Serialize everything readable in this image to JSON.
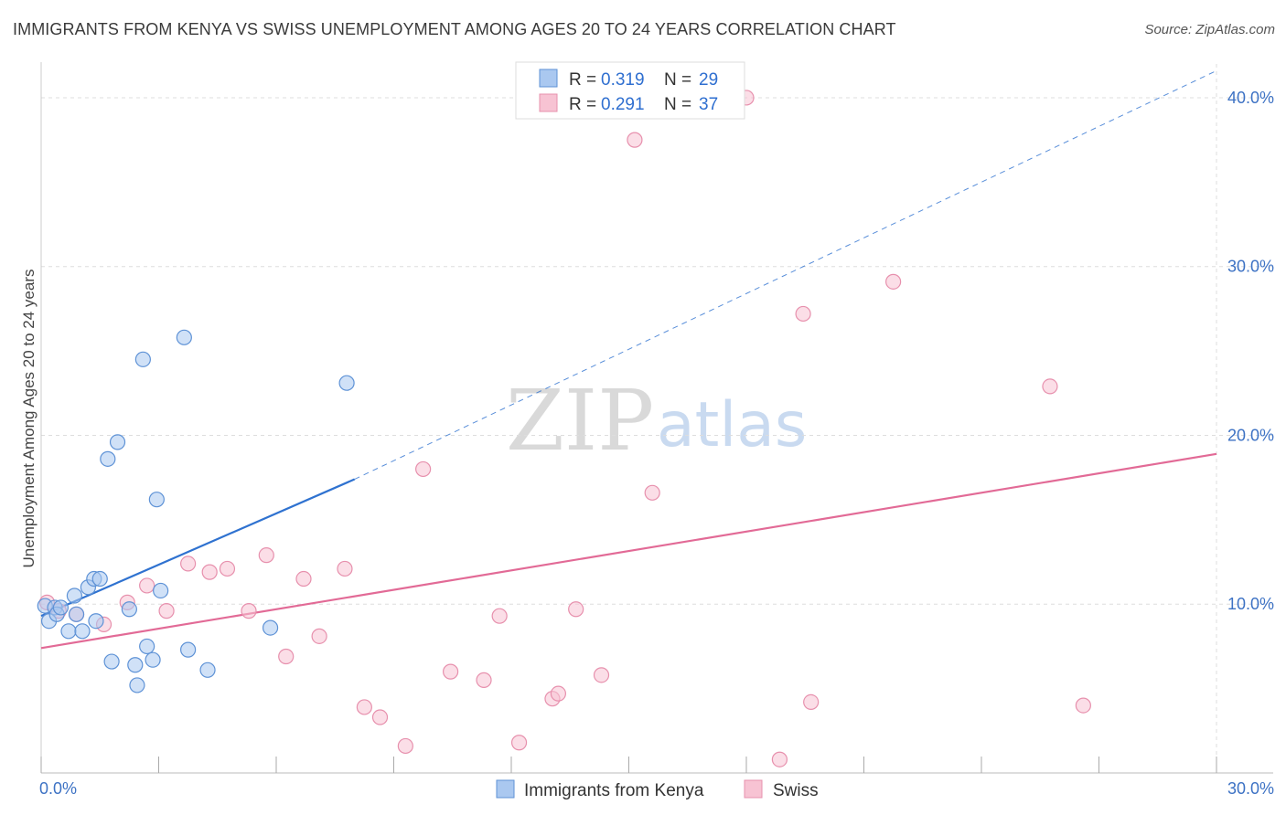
{
  "header": {
    "title": "IMMIGRANTS FROM KENYA VS SWISS UNEMPLOYMENT AMONG AGES 20 TO 24 YEARS CORRELATION CHART",
    "source": "Source: ZipAtlas.com"
  },
  "watermark": {
    "part1": "ZIP",
    "part2": "atlas"
  },
  "colors": {
    "kenya_fill": "#aac8f0",
    "kenya_stroke": "#5e92d6",
    "kenya_line": "#2f72d0",
    "swiss_fill": "#f7c3d3",
    "swiss_stroke": "#e790ad",
    "swiss_line": "#e26a96",
    "grid": "#dddddd",
    "axis_text": "#3d72c4"
  },
  "legend": {
    "rows": [
      {
        "r_label": "R = ",
        "r_value": "0.319",
        "n_label": "N = ",
        "n_value": "29"
      },
      {
        "r_label": "R = ",
        "r_value": "0.291",
        "n_label": "N = ",
        "n_value": "37"
      }
    ]
  },
  "bottom_legend": {
    "kenya": "Immigrants from Kenya",
    "swiss": "Swiss"
  },
  "chart_data": {
    "type": "scatter",
    "title": "IMMIGRANTS FROM KENYA VS SWISS UNEMPLOYMENT AMONG AGES 20 TO 24 YEARS CORRELATION CHART",
    "xlabel": "",
    "ylabel": "Unemployment Among Ages 20 to 24 years",
    "xlim": [
      0,
      30
    ],
    "ylim": [
      0,
      42
    ],
    "x_tick_labels": [
      "0.0%",
      "30.0%"
    ],
    "y_ticks": [
      10,
      20,
      30,
      40
    ],
    "y_tick_labels": [
      "10.0%",
      "20.0%",
      "30.0%",
      "40.0%"
    ],
    "grid": true,
    "legend_position": "top-center",
    "series": [
      {
        "name": "Immigrants from Kenya",
        "R": 0.319,
        "N": 29,
        "trend": {
          "x0": 0,
          "y0": 9.3,
          "x1": 8.0,
          "y1": 17.4,
          "extended_to_x": 30,
          "extended_y": 41.6
        },
        "points": [
          [
            0.1,
            9.9
          ],
          [
            0.2,
            9.0
          ],
          [
            0.35,
            9.8
          ],
          [
            0.4,
            9.4
          ],
          [
            0.5,
            9.8
          ],
          [
            0.7,
            8.4
          ],
          [
            0.9,
            9.4
          ],
          [
            0.85,
            10.5
          ],
          [
            1.05,
            8.4
          ],
          [
            1.2,
            11.0
          ],
          [
            1.35,
            11.5
          ],
          [
            1.5,
            11.5
          ],
          [
            1.4,
            9.0
          ],
          [
            1.7,
            18.6
          ],
          [
            1.8,
            6.6
          ],
          [
            1.95,
            19.6
          ],
          [
            2.25,
            9.7
          ],
          [
            2.4,
            6.4
          ],
          [
            2.45,
            5.2
          ],
          [
            2.6,
            24.5
          ],
          [
            2.7,
            7.5
          ],
          [
            2.85,
            6.7
          ],
          [
            2.95,
            16.2
          ],
          [
            3.05,
            10.8
          ],
          [
            3.65,
            25.8
          ],
          [
            3.75,
            7.3
          ],
          [
            4.25,
            6.1
          ],
          [
            5.85,
            8.6
          ],
          [
            7.8,
            23.1
          ]
        ]
      },
      {
        "name": "Swiss",
        "R": 0.291,
        "N": 37,
        "trend": {
          "x0": 0,
          "y0": 7.4,
          "x1": 30,
          "y1": 18.9
        },
        "points": [
          [
            0.15,
            10.1
          ],
          [
            0.45,
            9.6
          ],
          [
            0.9,
            9.4
          ],
          [
            1.6,
            8.8
          ],
          [
            2.2,
            10.1
          ],
          [
            2.7,
            11.1
          ],
          [
            3.2,
            9.6
          ],
          [
            3.75,
            12.4
          ],
          [
            4.3,
            11.9
          ],
          [
            4.75,
            12.1
          ],
          [
            5.3,
            9.6
          ],
          [
            5.75,
            12.9
          ],
          [
            6.25,
            6.9
          ],
          [
            6.7,
            11.5
          ],
          [
            7.1,
            8.1
          ],
          [
            7.75,
            12.1
          ],
          [
            8.25,
            3.9
          ],
          [
            8.65,
            3.3
          ],
          [
            9.3,
            1.6
          ],
          [
            9.75,
            18.0
          ],
          [
            10.45,
            6.0
          ],
          [
            11.3,
            5.5
          ],
          [
            11.7,
            9.3
          ],
          [
            12.2,
            1.8
          ],
          [
            13.05,
            4.4
          ],
          [
            13.2,
            4.7
          ],
          [
            13.65,
            9.7
          ],
          [
            14.3,
            5.8
          ],
          [
            15.15,
            37.5
          ],
          [
            15.6,
            16.6
          ],
          [
            18.0,
            40.0
          ],
          [
            18.85,
            0.8
          ],
          [
            19.45,
            27.2
          ],
          [
            19.65,
            4.2
          ],
          [
            21.75,
            29.1
          ],
          [
            25.75,
            22.9
          ],
          [
            26.6,
            4.0
          ]
        ]
      }
    ]
  }
}
